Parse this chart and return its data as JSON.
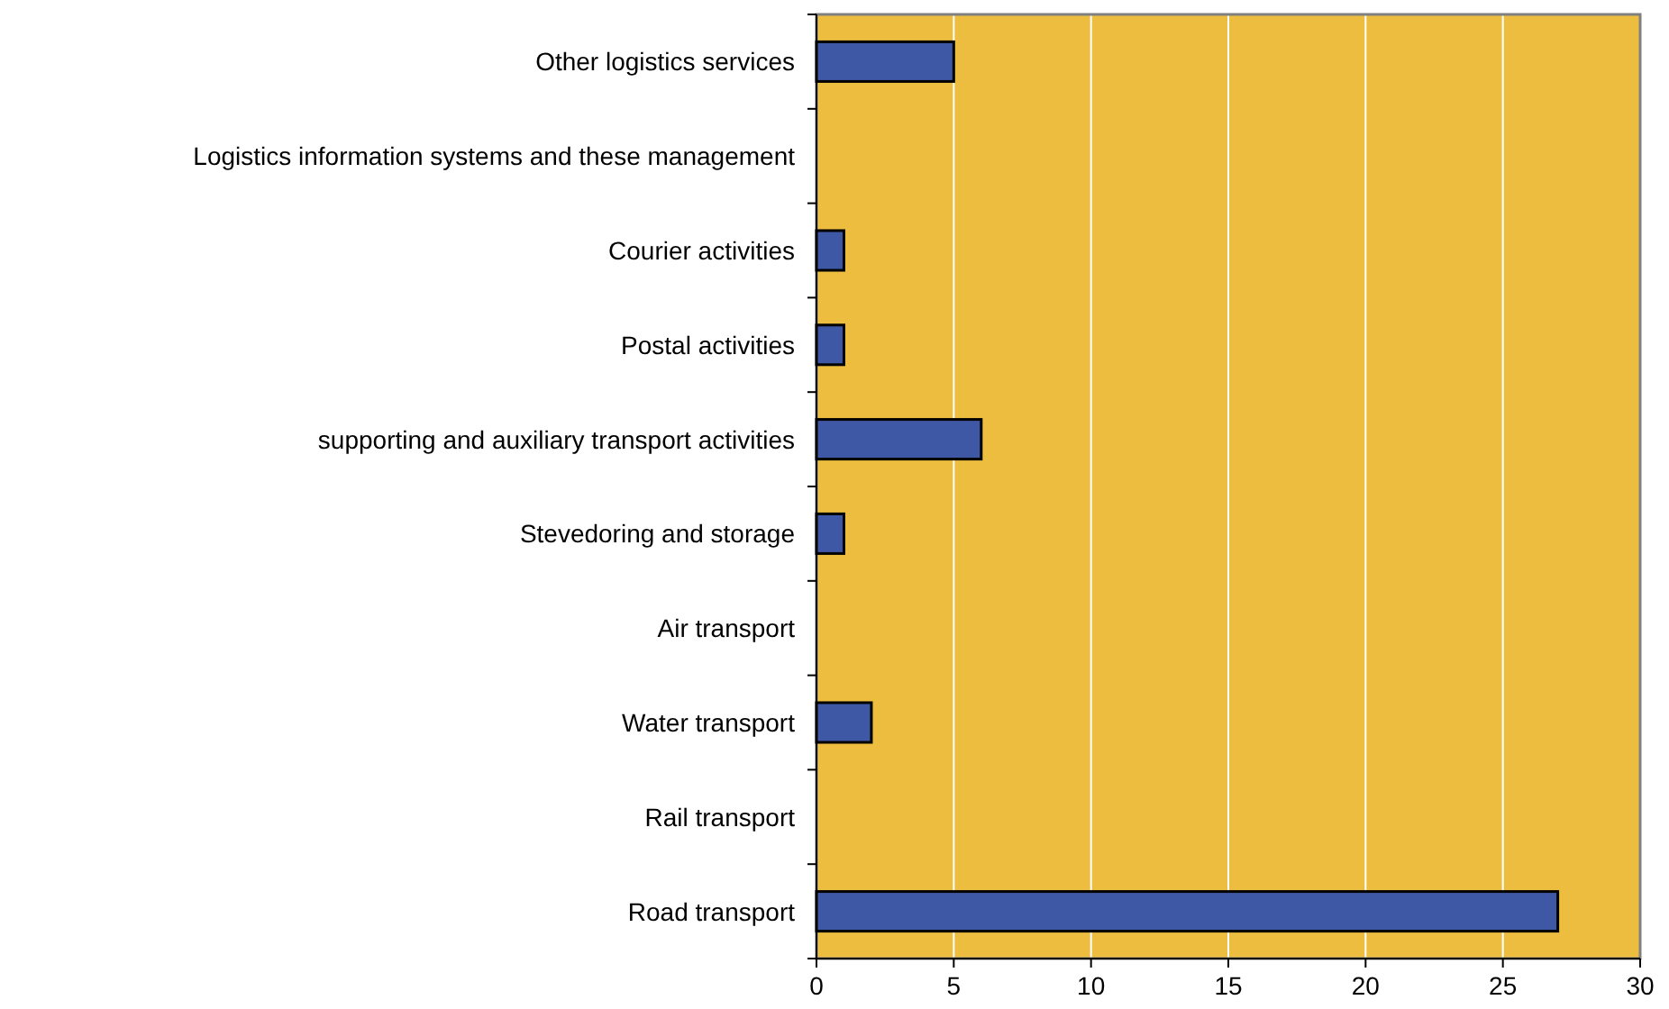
{
  "chart_data": {
    "type": "bar",
    "orientation": "horizontal",
    "categories": [
      "Other logistics services",
      "Logistics information systems and these management",
      "Courier activities",
      "Postal activities",
      "supporting and auxiliary transport activities",
      "Stevedoring and storage",
      "Air transport",
      "Water transport",
      "Rail transport",
      "Road transport"
    ],
    "values": [
      5,
      0,
      1,
      1,
      6,
      1,
      0,
      2,
      0,
      27
    ],
    "color": "#3f58a6",
    "xlim": [
      0,
      30
    ],
    "xticks": [
      0,
      5,
      10,
      15,
      20,
      25,
      30
    ],
    "grid": "x"
  }
}
